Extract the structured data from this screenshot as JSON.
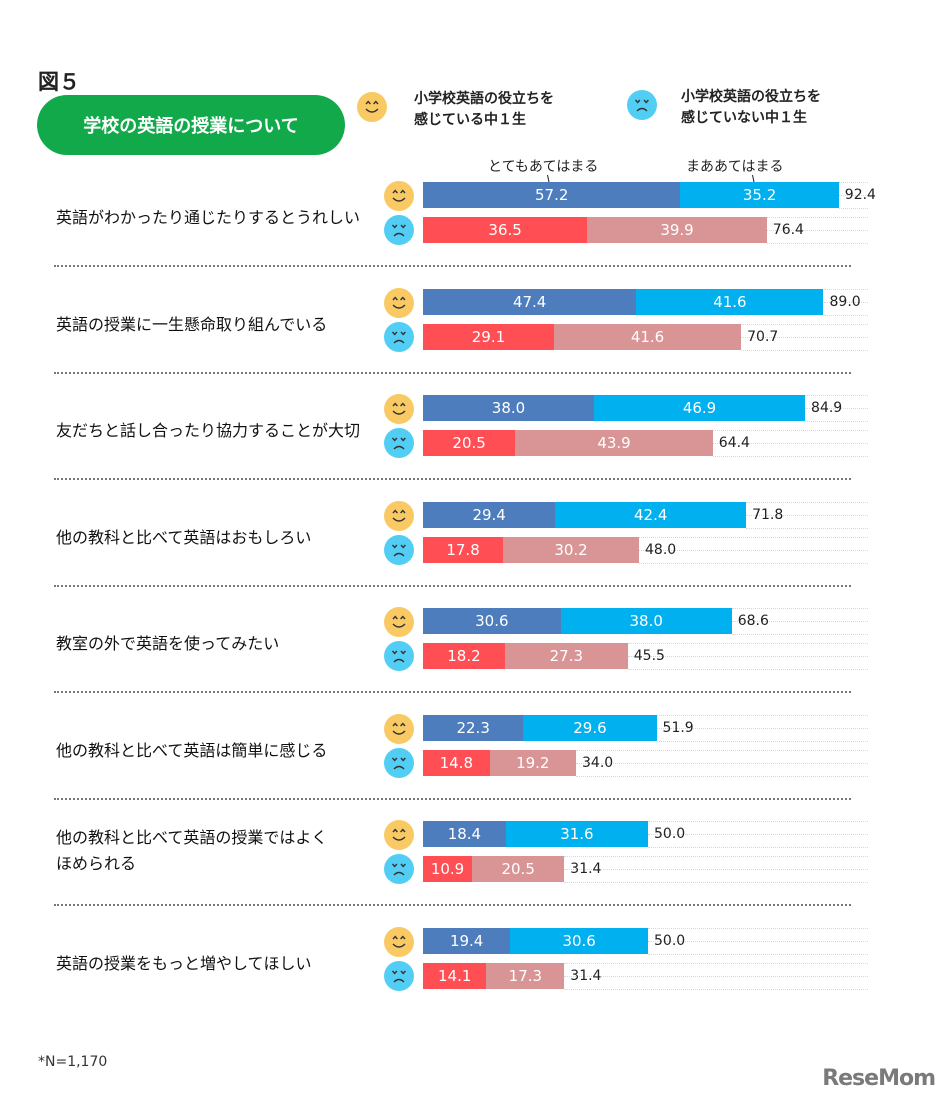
{
  "chart_data": {
    "type": "bar",
    "orientation": "horizontal-stacked",
    "figure_label": "図５",
    "title": "学校の英語の授業について",
    "legend": {
      "groups": [
        {
          "name": "小学校英語の役立ちを感じている中１生",
          "line1": "小学校英語の役立ちを",
          "line2": "感じている中１生",
          "icon": "happy-face-icon"
        },
        {
          "name": "小学校英語の役立ちを感じていない中１生",
          "line1": "小学校英語の役立ちを",
          "line2": "感じていない中１生",
          "icon": "sad-face-icon"
        }
      ],
      "segments": [
        "とてもあてはまる",
        "まああてはまる"
      ],
      "placement": "top"
    },
    "colors": {
      "happy_strong": "#4e7dbd",
      "happy_some": "#00b0ef",
      "sad_strong": "#ff4f55",
      "sad_some": "#d99496",
      "title_pill": "#12a94b"
    },
    "xlim": [
      0,
      100
    ],
    "unit": "%",
    "categories": [
      {
        "label": "英語がわかったり通じたりするとうれしい",
        "happy": [
          57.2,
          35.2
        ],
        "happy_total": "92.4",
        "sad": [
          36.5,
          39.9
        ],
        "sad_total": "76.4"
      },
      {
        "label": "英語の授業に一生懸命取り組んでいる",
        "happy": [
          47.4,
          41.6
        ],
        "happy_total": "89.0",
        "sad": [
          29.1,
          41.6
        ],
        "sad_total": "70.7"
      },
      {
        "label": "友だちと話し合ったり協力することが大切",
        "happy": [
          38.0,
          46.9
        ],
        "happy_total": "84.9",
        "sad": [
          20.5,
          43.9
        ],
        "sad_total": "64.4"
      },
      {
        "label": "他の教科と比べて英語はおもしろい",
        "happy": [
          29.4,
          42.4
        ],
        "happy_total": "71.8",
        "sad": [
          17.8,
          30.2
        ],
        "sad_total": "48.0"
      },
      {
        "label": "教室の外で英語を使ってみたい",
        "happy": [
          30.6,
          38.0
        ],
        "happy_total": "68.6",
        "sad": [
          18.2,
          27.3
        ],
        "sad_total": "45.5"
      },
      {
        "label": "他の教科と比べて英語は簡単に感じる",
        "happy": [
          22.3,
          29.6
        ],
        "happy_total": "51.9",
        "sad": [
          14.8,
          19.2
        ],
        "sad_total": "34.0"
      },
      {
        "label": "他の教科と比べて英語の授業ではよくほめられる",
        "label_lines": [
          "他の教科と比べて英語の授業ではよく",
          "ほめられる"
        ],
        "happy": [
          18.4,
          31.6
        ],
        "happy_total": "50.0",
        "sad": [
          10.9,
          20.5
        ],
        "sad_total": "31.4"
      },
      {
        "label": "英語の授業をもっと増やしてほしい",
        "happy": [
          19.4,
          30.6
        ],
        "happy_total": "50.0",
        "sad": [
          14.1,
          17.3
        ],
        "sad_total": "31.4"
      }
    ],
    "footnote": "*N=1,170",
    "source_logo": "ReseMom"
  }
}
